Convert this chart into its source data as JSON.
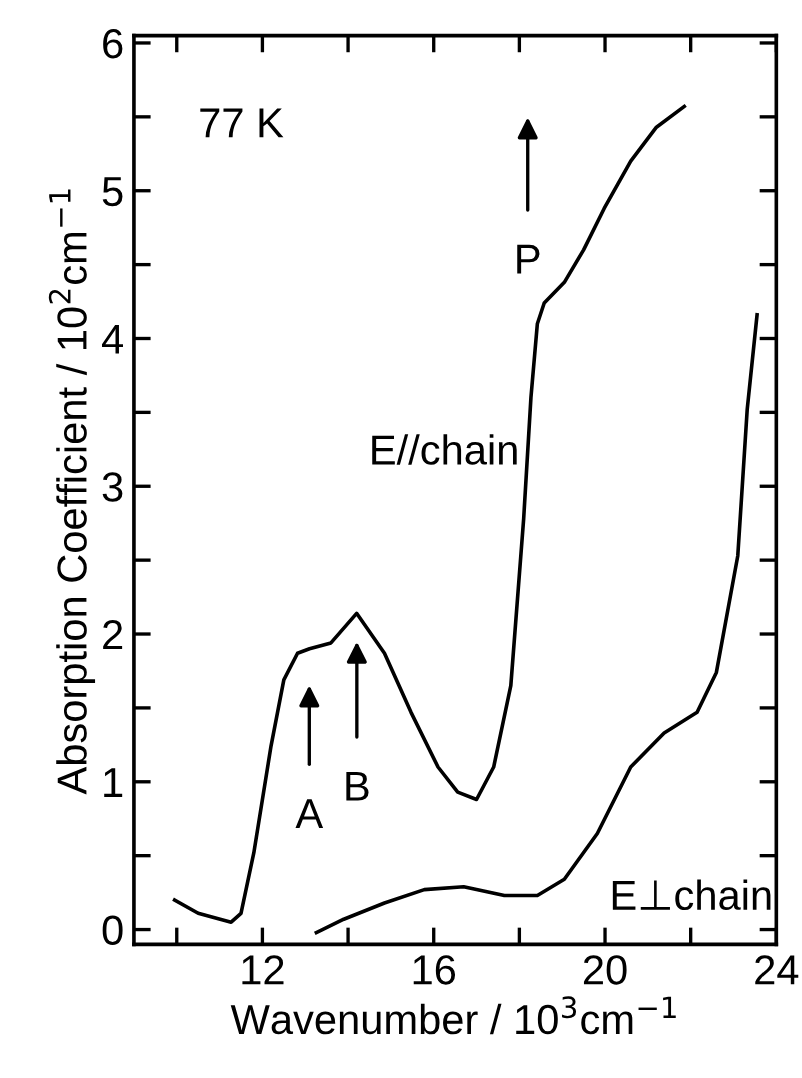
{
  "chart_data": {
    "type": "line",
    "xlabel": "Wavenumber / 10$^{3}$cm$^{−1}$",
    "ylabel": "Absorption Coefficient / 10$^{2}$cm$^{−1}$",
    "series": [
      {
        "color": "#000000",
        "x": [
          9.95,
          10.5,
          11.27,
          11.5,
          11.8,
          12.2,
          12.5,
          12.82,
          13.1,
          13.6,
          14.2,
          14.85,
          15.47,
          16.1,
          16.56,
          17.0,
          17.4,
          17.8,
          18.1,
          18.27,
          18.42,
          18.58,
          19.05,
          19.5,
          19.98,
          20.6,
          21.2,
          21.85
        ],
        "values": [
          0.2,
          0.11,
          0.05,
          0.11,
          0.52,
          1.24,
          1.69,
          1.87,
          1.9,
          1.94,
          2.14,
          1.87,
          1.47,
          1.1,
          0.93,
          0.88,
          1.1,
          1.65,
          2.78,
          3.6,
          4.1,
          4.24,
          4.38,
          4.6,
          4.88,
          5.2,
          5.43,
          5.57
        ]
      },
      {
        "color": "#000000",
        "x": [
          13.26,
          13.9,
          14.85,
          15.78,
          16.7,
          17.65,
          18.42,
          19.05,
          19.82,
          20.6,
          21.38,
          22.15,
          22.6,
          23.1,
          23.32,
          23.55
        ],
        "values": [
          -0.02,
          0.07,
          0.18,
          0.27,
          0.29,
          0.23,
          0.23,
          0.34,
          0.65,
          1.1,
          1.33,
          1.47,
          1.74,
          2.53,
          3.52,
          4.16
        ]
      }
    ],
    "annotations": [
      "A",
      "B",
      "P",
      "77 K",
      "E//chain",
      "E⊥chain"
    ],
    "xlim": [
      9,
      24
    ],
    "ylim": [
      -0.1,
      6.05
    ],
    "xticks": [
      {
        "value": 10,
        "label": null
      },
      12,
      {
        "value": 14,
        "label": null
      },
      16,
      {
        "value": 18,
        "label": null
      },
      20,
      {
        "value": 22,
        "label": null
      },
      24
    ],
    "yticks": [
      0,
      {
        "value": 0.5,
        "label": null
      },
      1,
      {
        "value": 1.5,
        "label": null
      },
      2,
      {
        "value": 2.5,
        "label": null
      },
      3,
      {
        "value": 3.5,
        "label": null
      },
      4,
      {
        "value": 4.5,
        "label": null
      },
      5,
      {
        "value": 5.5,
        "label": null
      },
      6
    ],
    "grid": false,
    "legend": false
  }
}
